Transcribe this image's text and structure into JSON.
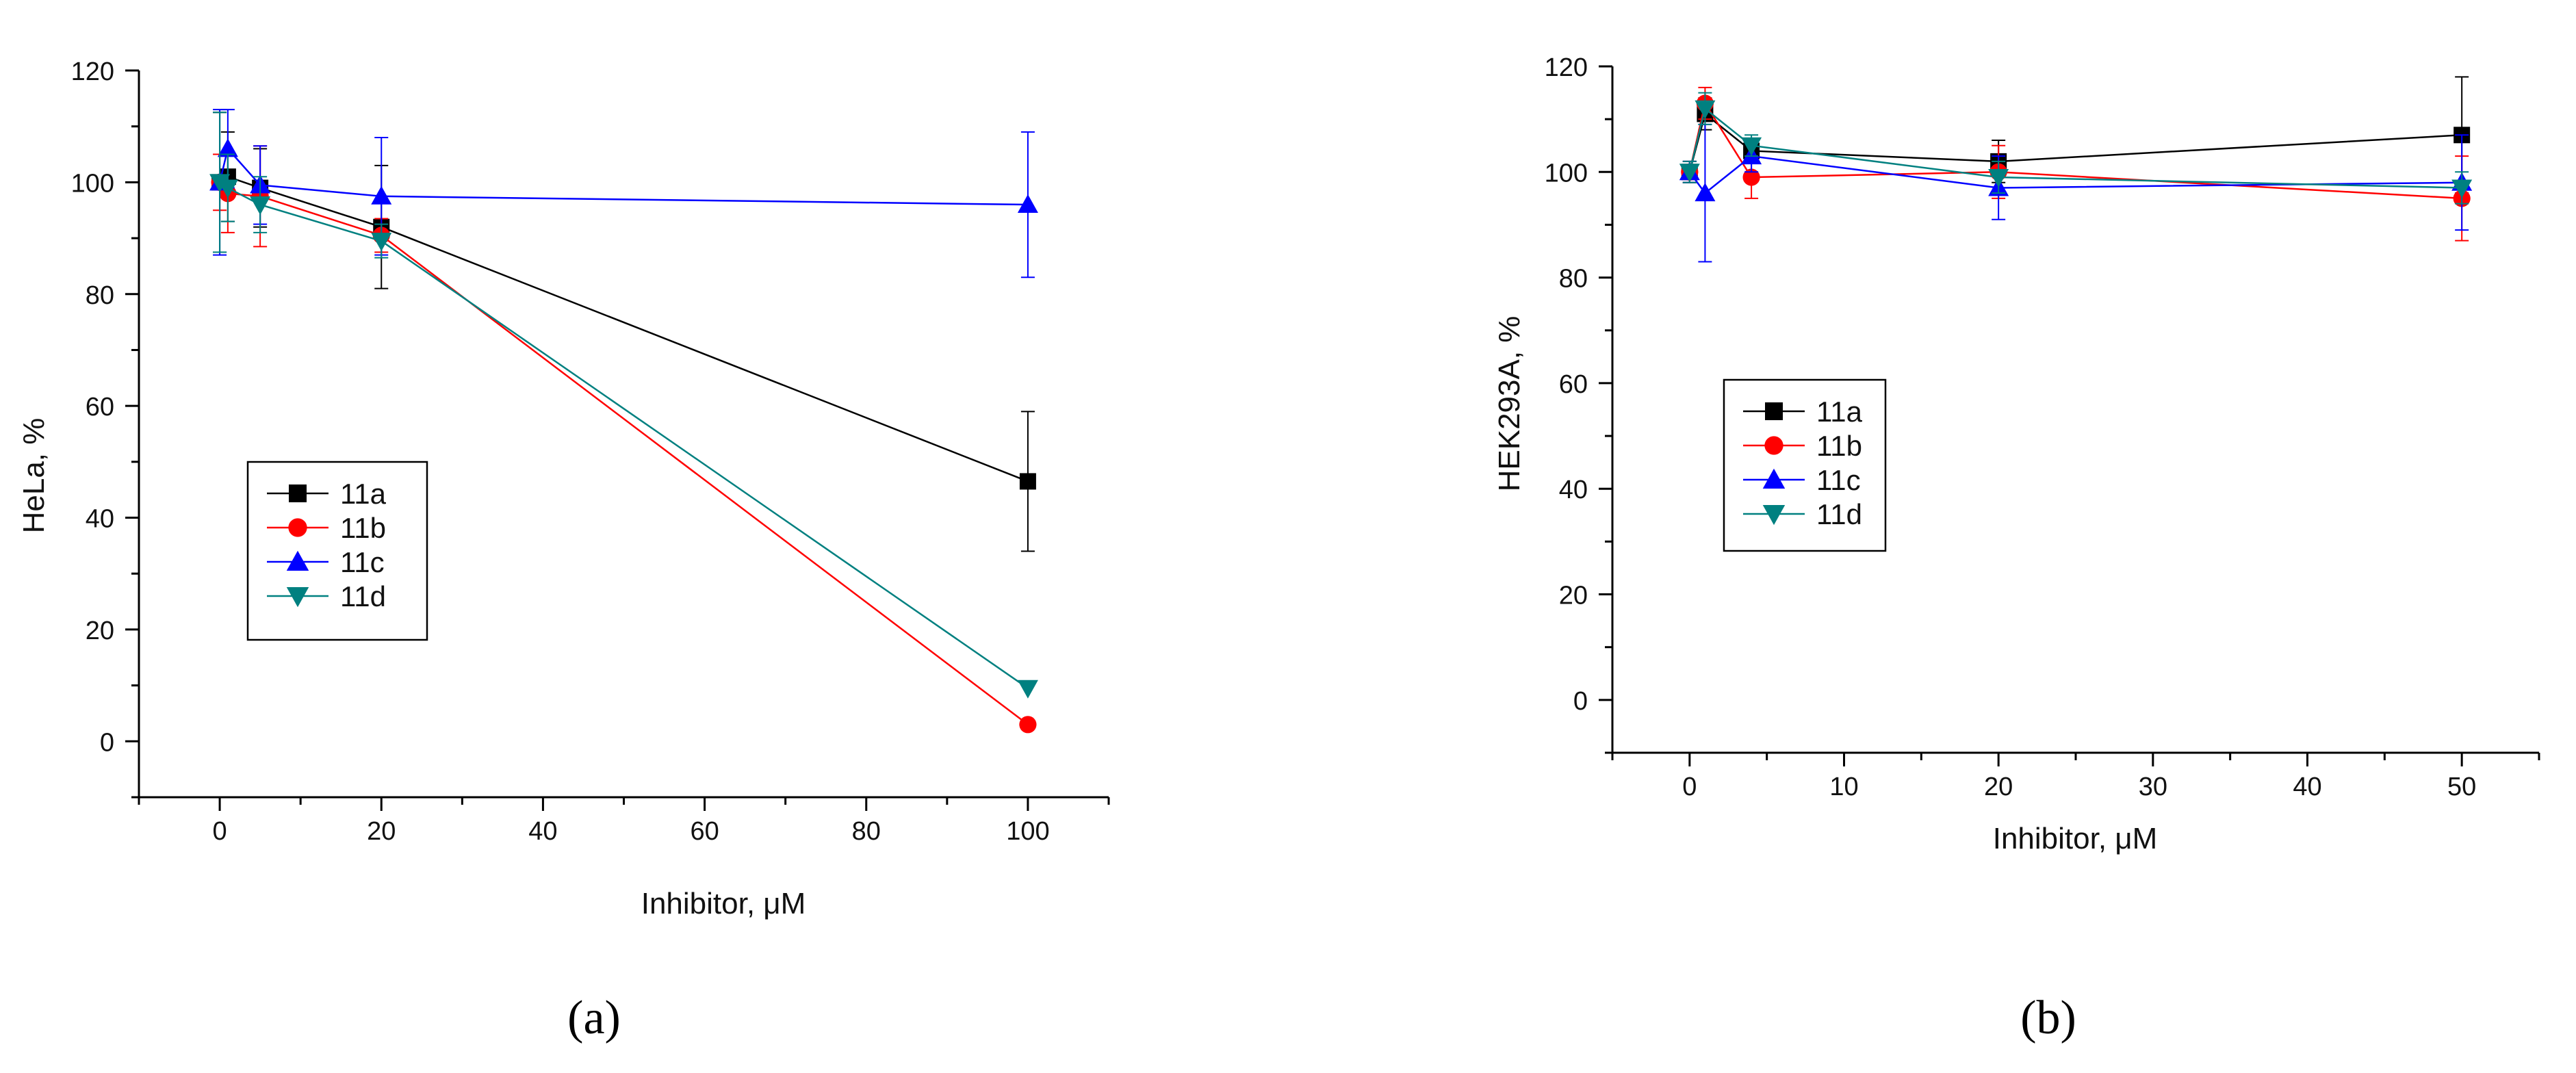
{
  "chart_data": [
    {
      "type": "scatter",
      "panel_label": "(a)",
      "xlabel": "Inhibitor, μM",
      "ylabel": "HeLa, %",
      "xlim": [
        -10,
        110
      ],
      "ylim": [
        -10,
        120
      ],
      "xticks": [
        0,
        20,
        40,
        60,
        80,
        100
      ],
      "yticks": [
        0,
        20,
        40,
        60,
        80,
        100,
        120
      ],
      "legend_position": "center-left",
      "series": [
        {
          "name": "11a",
          "color": "#000000",
          "marker": "square",
          "x": [
            0,
            1,
            5,
            20,
            100
          ],
          "y": [
            100,
            101,
            99,
            92,
            46.5
          ],
          "err": [
            12.5,
            8,
            7,
            11,
            12.5
          ]
        },
        {
          "name": "11b",
          "color": "#ff0000",
          "marker": "circle",
          "x": [
            0,
            1,
            5,
            20,
            100
          ],
          "y": [
            100,
            98,
            97.5,
            90.5,
            3
          ],
          "err": [
            5,
            7,
            9,
            3,
            0
          ]
        },
        {
          "name": "11c",
          "color": "#0000ff",
          "marker": "triangle-up",
          "x": [
            0,
            1,
            5,
            20,
            100
          ],
          "y": [
            100,
            106,
            99.5,
            97.5,
            96
          ],
          "err": [
            13,
            7,
            7,
            10.5,
            13
          ]
        },
        {
          "name": "11d",
          "color": "#008080",
          "marker": "triangle-down",
          "x": [
            0,
            1,
            5,
            20,
            100
          ],
          "y": [
            100,
            99,
            96,
            89.5,
            9.5
          ],
          "err": [
            12.5,
            6,
            5,
            3,
            0
          ]
        }
      ]
    },
    {
      "type": "scatter",
      "panel_label": "(b)",
      "xlabel": "Inhibitor, μM",
      "ylabel": "HEK293A, %",
      "xlim": [
        -5,
        55
      ],
      "ylim": [
        -10,
        120
      ],
      "xticks": [
        0,
        10,
        20,
        30,
        40,
        50
      ],
      "yticks": [
        0,
        20,
        40,
        60,
        80,
        100,
        120
      ],
      "legend_position": "center-left",
      "series": [
        {
          "name": "11a",
          "color": "#000000",
          "marker": "square",
          "x": [
            0,
            1,
            4,
            20,
            50
          ],
          "y": [
            100,
            111,
            104,
            102,
            107
          ],
          "err": [
            2,
            3,
            2,
            4,
            11
          ]
        },
        {
          "name": "11b",
          "color": "#ff0000",
          "marker": "circle",
          "x": [
            0,
            1,
            4,
            20,
            50
          ],
          "y": [
            100,
            113,
            99,
            100,
            95
          ],
          "err": [
            2,
            3,
            4,
            5,
            8
          ]
        },
        {
          "name": "11c",
          "color": "#0000ff",
          "marker": "triangle-up",
          "x": [
            0,
            1,
            4,
            20,
            50
          ],
          "y": [
            100,
            96,
            103,
            97,
            98
          ],
          "err": [
            2,
            13,
            3,
            6,
            9
          ]
        },
        {
          "name": "11d",
          "color": "#008080",
          "marker": "triangle-down",
          "x": [
            0,
            1,
            4,
            20,
            50
          ],
          "y": [
            100,
            112,
            105,
            99,
            97
          ],
          "err": [
            2,
            3,
            2,
            3,
            3
          ]
        }
      ]
    }
  ]
}
